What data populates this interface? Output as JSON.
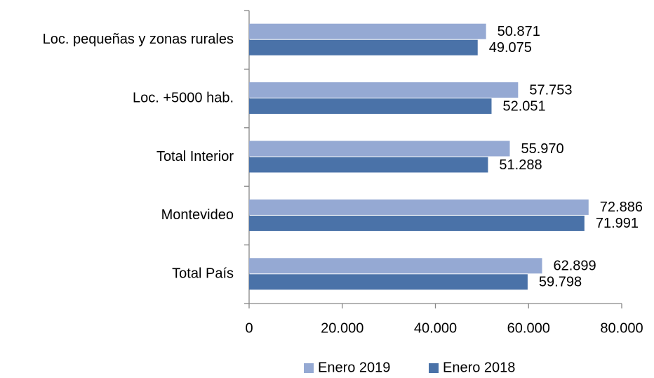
{
  "chart_data": {
    "type": "bar",
    "orientation": "horizontal",
    "categories": [
      "Loc. pequeñas y zonas rurales",
      "Loc. +5000 hab.",
      "Total Interior",
      "Montevideo",
      "Total País"
    ],
    "series": [
      {
        "name": "Enero 2019",
        "color": "#95a9d3",
        "values": [
          50871,
          57753,
          55970,
          72886,
          62899
        ],
        "value_labels": [
          "50.871",
          "57.753",
          "55.970",
          "72.886",
          "62.899"
        ]
      },
      {
        "name": "Enero 2018",
        "color": "#4a72a8",
        "values": [
          49075,
          52051,
          51288,
          71991,
          59798
        ],
        "value_labels": [
          "49.075",
          "52.051",
          "51.288",
          "71.991",
          "59.798"
        ]
      }
    ],
    "xlim": [
      0,
      80000
    ],
    "xticks": [
      0,
      {
        "value": 20000,
        "label": "20.000"
      },
      {
        "value": 40000,
        "label": "40.000"
      },
      {
        "value": 60000,
        "label": "60.000"
      },
      {
        "value": 80000,
        "label": "80.000"
      }
    ],
    "grid": false,
    "legend": "bottom"
  }
}
